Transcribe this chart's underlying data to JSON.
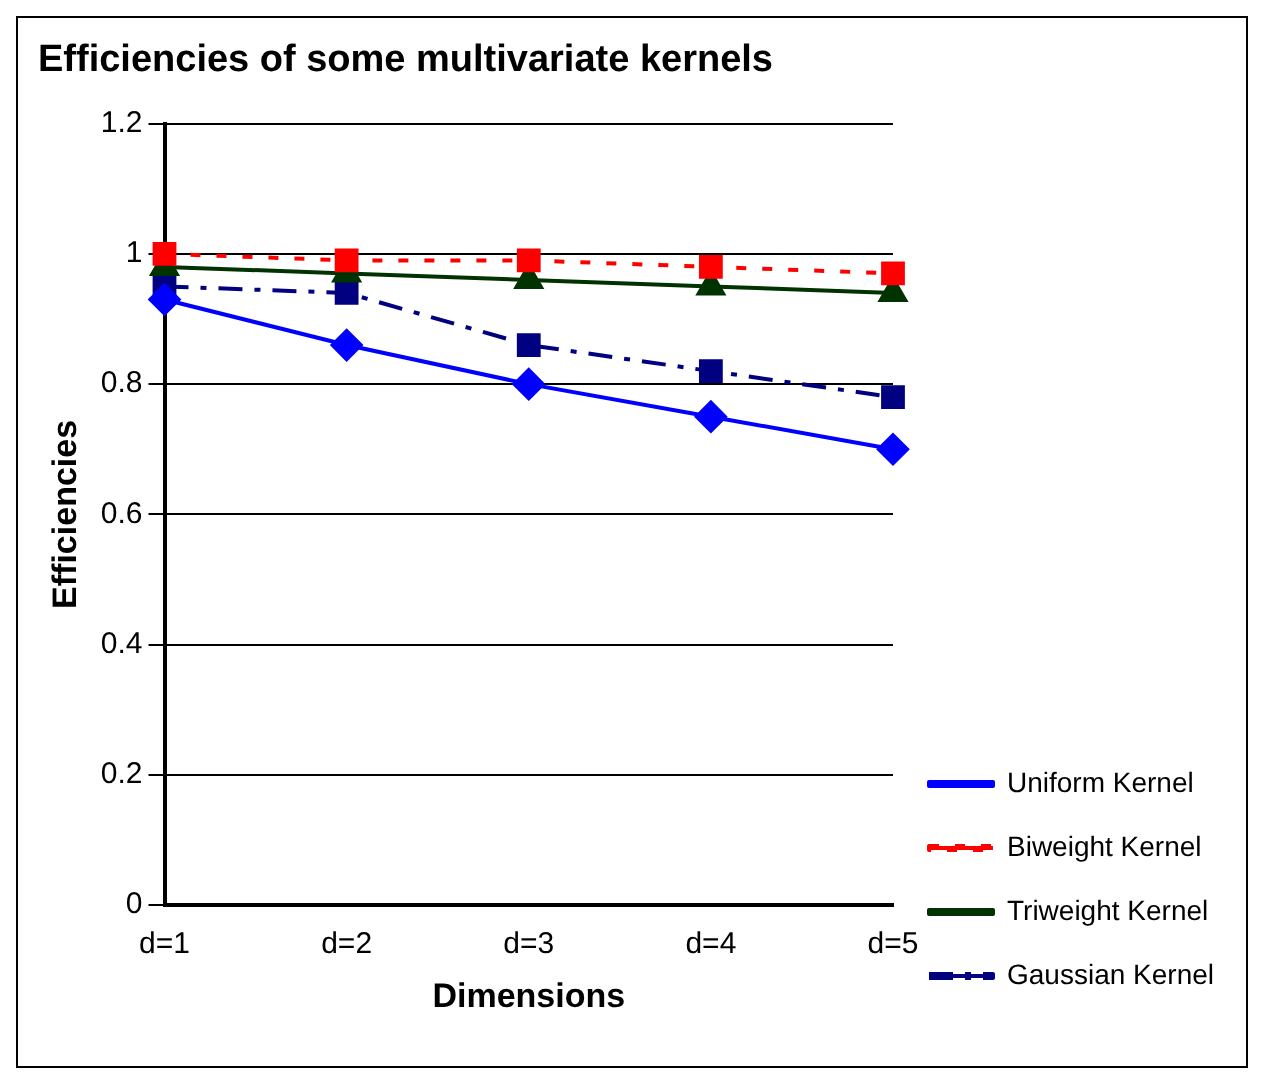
{
  "chart_data": {
    "type": "line",
    "title": "Efficiencies of some multivariate kernels",
    "xlabel": "Dimensions",
    "ylabel": "Efficiencies",
    "categories": [
      "d=1",
      "d=2",
      "d=3",
      "d=4",
      "d=5"
    ],
    "series": [
      {
        "name": "Uniform Kernel",
        "color": "#0000ff",
        "values": [
          0.93,
          0.86,
          0.8,
          0.75,
          0.7
        ],
        "marker": "diamond",
        "line_style": "solid"
      },
      {
        "name": "Biweight Kernel",
        "color": "#ff0000",
        "values": [
          1.0,
          0.99,
          0.99,
          0.98,
          0.97
        ],
        "marker": "square",
        "line_style": "dotted"
      },
      {
        "name": "Triweight Kernel",
        "color": "#003300",
        "values": [
          0.98,
          0.97,
          0.96,
          0.95,
          0.94
        ],
        "marker": "triangle",
        "line_style": "solid"
      },
      {
        "name": "Gaussian Kernel",
        "color": "#000080",
        "values": [
          0.95,
          0.94,
          0.86,
          0.82,
          0.78
        ],
        "marker": "square",
        "line_style": "dashed"
      }
    ],
    "ylim": [
      0,
      1.2
    ],
    "yticks": [
      0,
      0.2,
      0.4,
      0.6,
      0.8,
      1,
      1.2
    ],
    "grid": "y",
    "legend": "right"
  }
}
